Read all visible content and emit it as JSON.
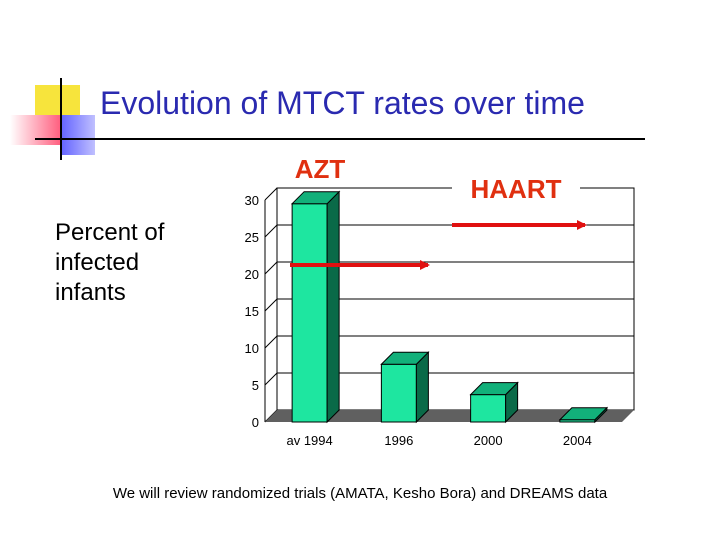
{
  "slide": {
    "title": "Evolution of MTCT rates over time",
    "footnote": "We will review randomized trials (AMATA, Kesho Bora) and DREAMS data",
    "side_label": "Percent of infected infants"
  },
  "annotations": [
    {
      "text": "AZT",
      "color": "#e03010",
      "arrow_from": "av 1994",
      "arrow_to": "1996"
    },
    {
      "text": "HAART",
      "color": "#e03010",
      "arrow_from": "1996",
      "arrow_to": "2004"
    }
  ],
  "colors": {
    "bar_front": "#1ee6a0",
    "bar_side": "#0a6a48",
    "bar_top": "#12b07a",
    "floor": "#606060",
    "title": "#2a2ab0",
    "arrow": "#e01010"
  },
  "chart_data": {
    "type": "bar",
    "categories": [
      "av 1994",
      "1996",
      "2000",
      "2004"
    ],
    "values": [
      29.5,
      7.8,
      3.7,
      0.3
    ],
    "title": "",
    "xlabel": "",
    "ylabel": "Percent of infected infants",
    "ylim": [
      0,
      30
    ],
    "yticks": [
      0,
      5,
      10,
      15,
      20,
      25,
      30
    ],
    "grid": true,
    "style": "3d"
  }
}
